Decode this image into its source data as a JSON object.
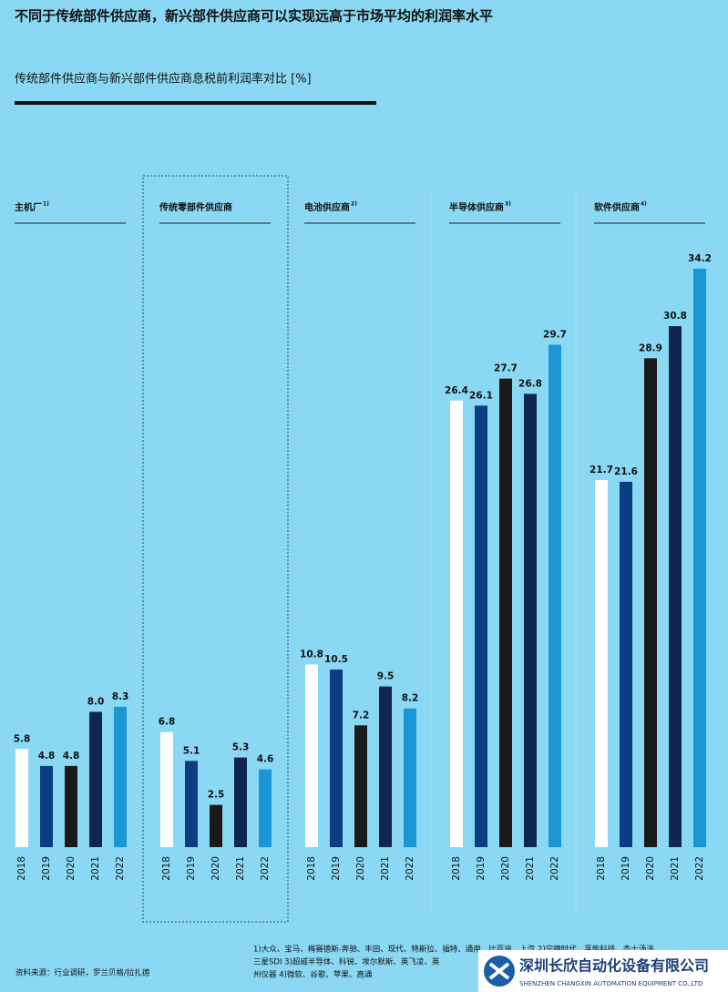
{
  "chart_data": {
    "type": "bar",
    "title": "不同于传统部件供应商，新兴部件供应商可以实现远高于市场平均的利润率水平",
    "subtitle": "传统部件供应商与新兴部件供应商息税前利润率对比 [%]",
    "categories": [
      "2018",
      "2019",
      "2020",
      "2021",
      "2022"
    ],
    "colors": [
      "#ffffff",
      "#0b3d82",
      "#1a1a1a",
      "#11264f",
      "#1b96d4"
    ],
    "ylim": [
      0,
      35
    ],
    "panels": [
      {
        "label": "主机厂",
        "note": "1)",
        "values": [
          5.8,
          4.8,
          4.8,
          8.0,
          8.3
        ],
        "value_labels": [
          "5.8",
          "4.8",
          "4.8",
          "8.0",
          "8.3"
        ]
      },
      {
        "label": "传统零部件供应商",
        "values": [
          6.8,
          5.1,
          2.5,
          5.3,
          4.6
        ],
        "value_labels": [
          "6.8",
          "5.1",
          "2.5",
          "5.3",
          "4.6"
        ]
      },
      {
        "label": "电池供应商",
        "note": "2)",
        "values": [
          10.8,
          10.5,
          7.2,
          9.5,
          8.2
        ],
        "value_labels": [
          "10.8",
          "10.5",
          "7.2",
          "9.5",
          "8.2"
        ]
      },
      {
        "label": "半导体供应商",
        "note": "3)",
        "values": [
          26.4,
          26.1,
          27.7,
          26.8,
          29.7
        ],
        "value_labels": [
          "26.4",
          "26.1",
          "27.7",
          "26.8",
          "29.7"
        ]
      },
      {
        "label": "软件供应商",
        "note": "4)",
        "values": [
          21.7,
          21.6,
          28.9,
          30.8,
          34.2
        ],
        "value_labels": [
          "21.7",
          "21.6",
          "28.9",
          "30.8",
          "34.2"
        ]
      }
    ],
    "footnotes": [
      "1)大众、宝马、梅赛德斯-奔驰、丰田、现代、特斯拉、福特、通用、比亚迪、上汽  2)宁德时代、孚能科技、杰士汤浅、",
      "三星SDI  3)超威半导体、科锐、埃尔默斯、英飞凌、英",
      "州仪器  4)微软、谷歌、苹果、高通"
    ],
    "source": "资料来源：行业调研，罗兰贝格/拉扎德"
  },
  "logo": {
    "name": "深圳长欣自动化设备有限公司",
    "subtitle": "SHENZHEN CHANGXIN AUTOMATION EQUIPMENT CO.,LTD"
  }
}
